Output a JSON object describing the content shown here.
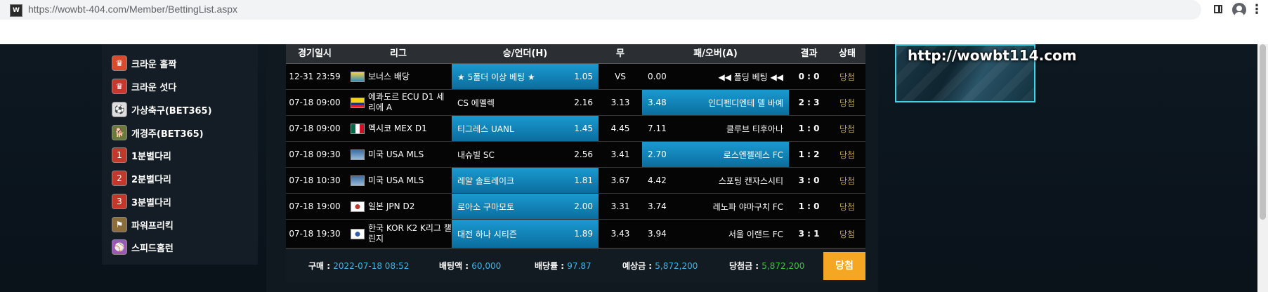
{
  "browser": {
    "url": "https://wowbt-404.com/Member/BettingList.aspx",
    "favicon_text": "W"
  },
  "sidebar": {
    "items": [
      {
        "label": "크라운 홀짝",
        "icon": "crown-oddeven-icon",
        "color": "#d94b2b"
      },
      {
        "label": "크라운 섯다",
        "icon": "crown-seotda-icon",
        "color": "#c8362e"
      },
      {
        "label": "가상축구(BET365)",
        "icon": "soccer-ball-icon",
        "color": "#cccccc"
      },
      {
        "label": "개경주(BET365)",
        "icon": "dog-race-icon",
        "color": "#6a7a3a"
      },
      {
        "label": "1분별다리",
        "icon": "star-ladder-1-icon",
        "color": "#c0392b"
      },
      {
        "label": "2분별다리",
        "icon": "star-ladder-2-icon",
        "color": "#c0392b"
      },
      {
        "label": "3분별다리",
        "icon": "star-ladder-3-icon",
        "color": "#c0392b"
      },
      {
        "label": "파워프리킥",
        "icon": "power-freekick-icon",
        "color": "#8a6d3b"
      },
      {
        "label": "스피드홈런",
        "icon": "speed-homerun-icon",
        "color": "#9b59b6"
      }
    ]
  },
  "table": {
    "headers": {
      "date": "경기일시",
      "league": "리그",
      "home": "승/언더(H)",
      "draw": "무",
      "away": "패/오버(A)",
      "result": "결과",
      "status": "상태"
    },
    "rows": [
      {
        "date": "12-31 23:59",
        "league": "보너스 배당",
        "flag": "bonus-flag-icon",
        "home": "★ 5폴더 이상 베팅 ★",
        "home_odds": "1.05",
        "draw": "VS",
        "away": "◀◀ 폴딩 베팅 ◀◀",
        "away_odds": "0.00",
        "result": "0 : 0",
        "status": "당첨",
        "sel": "home"
      },
      {
        "date": "07-18 09:00",
        "league": "에콰도르 ECU D1 세리에 A",
        "flag": "ecuador-flag-icon",
        "home": "CS 에멜렉",
        "home_odds": "2.16",
        "draw": "3.13",
        "away": "인디펜디엔테 델 바예",
        "away_odds": "3.48",
        "result": "2 : 3",
        "status": "당첨",
        "sel": "away"
      },
      {
        "date": "07-18 09:00",
        "league": "멕시코 MEX D1",
        "flag": "mexico-flag-icon",
        "home": "티그레스 UANL",
        "home_odds": "1.45",
        "draw": "4.45",
        "away": "클루브 티후아나",
        "away_odds": "7.11",
        "result": "1 : 0",
        "status": "당첨",
        "sel": "home"
      },
      {
        "date": "07-18 09:30",
        "league": "미국 USA MLS",
        "flag": "usa-mls-icon",
        "home": "내슈빌 SC",
        "home_odds": "2.56",
        "draw": "3.41",
        "away": "로스엔젤레스 FC",
        "away_odds": "2.70",
        "result": "1 : 2",
        "status": "당첨",
        "sel": "away"
      },
      {
        "date": "07-18 10:30",
        "league": "미국 USA MLS",
        "flag": "usa-mls-icon",
        "home": "레알 솔트레이크",
        "home_odds": "1.81",
        "draw": "3.67",
        "away": "스포팅 캔자스시티",
        "away_odds": "4.42",
        "result": "3 : 0",
        "status": "당첨",
        "sel": "home"
      },
      {
        "date": "07-18 19:00",
        "league": "일본 JPN D2",
        "flag": "japan-d2-icon",
        "home": "로아소 구마모토",
        "home_odds": "2.00",
        "draw": "3.31",
        "away": "레노파 야마구치 FC",
        "away_odds": "3.74",
        "result": "1 : 0",
        "status": "당첨",
        "sel": "home"
      },
      {
        "date": "07-18 19:30",
        "league": "한국 KOR K2 K리그 챌린지",
        "flag": "korea-k2-icon",
        "home": "대전 하나 시티즌",
        "home_odds": "1.89",
        "draw": "3.43",
        "away": "서울 이랜드 FC",
        "away_odds": "3.94",
        "result": "3 : 1",
        "status": "당첨",
        "sel": "home"
      }
    ]
  },
  "summary": {
    "purchase_label": "구매 :",
    "purchase_value": "2022-07-18 08:52",
    "bet_amount_label": "배팅액 :",
    "bet_amount_value": "60,000",
    "odds_label": "배당률 :",
    "odds_value": "97.87",
    "expected_label": "예상금 :",
    "expected_value": "5,872,200",
    "win_label": "당첨금 :",
    "win_value": "5,872,200",
    "status_button": "당첨"
  },
  "banner": {
    "text": "http://wowbt114.com"
  },
  "colors": {
    "selected_cell": "#1a9ad0",
    "status_win": "#b8a04a",
    "value_blue": "#41b4e6",
    "value_green": "#3ec13e",
    "status_button": "#f5a623"
  }
}
